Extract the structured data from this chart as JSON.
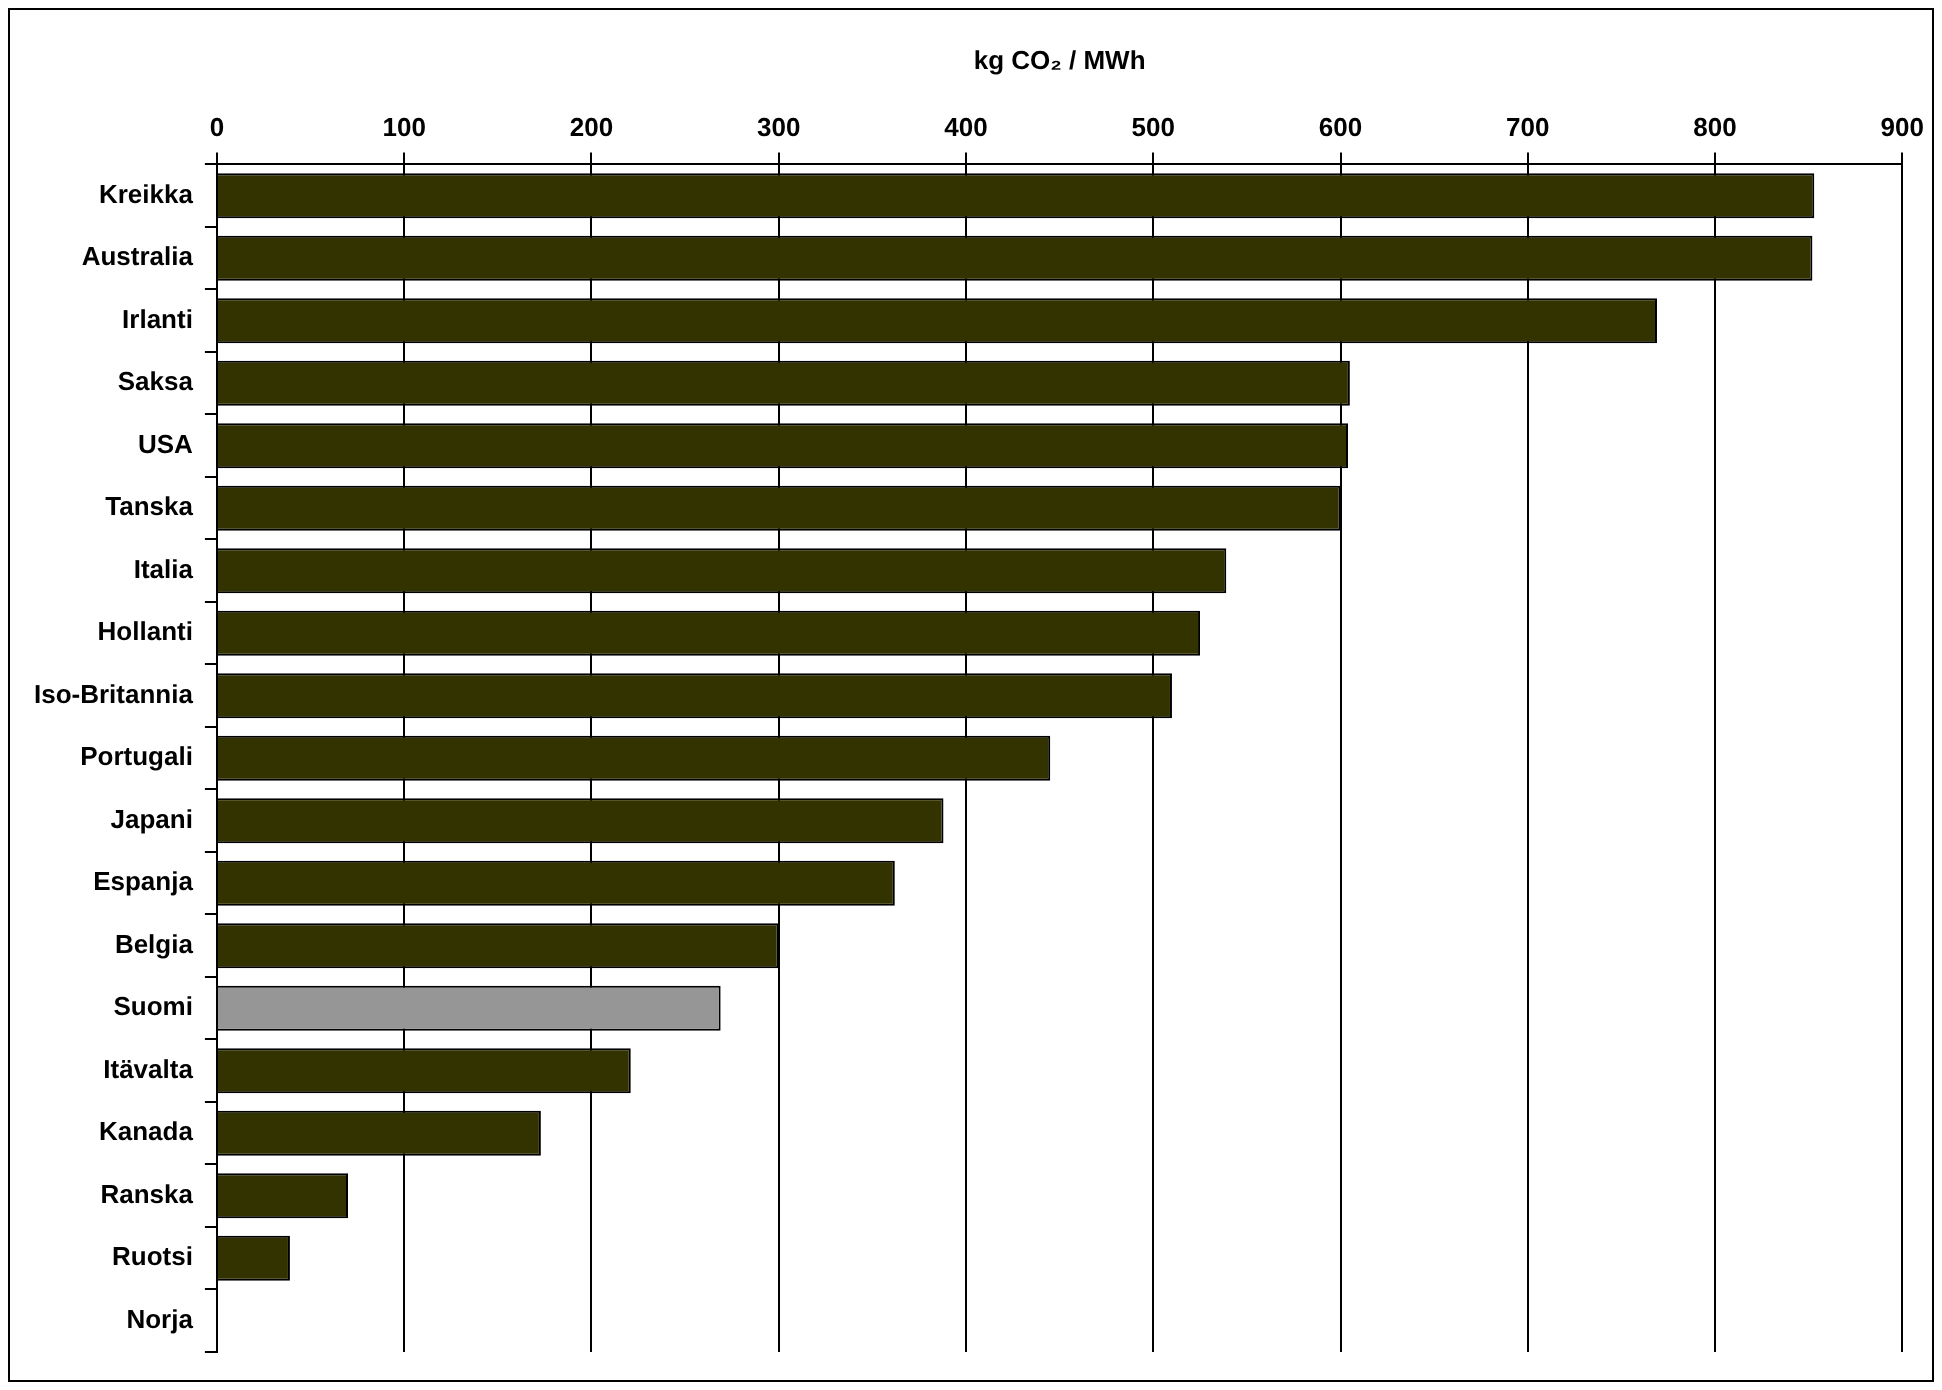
{
  "chart_data": {
    "type": "bar",
    "orientation": "horizontal",
    "xlabel": "kg CO₂ / MWh",
    "categories": [
      "Kreikka",
      "Australia",
      "Irlanti",
      "Saksa",
      "USA",
      "Tanska",
      "Italia",
      "Hollanti",
      "Iso-Britannia",
      "Portugali",
      "Japani",
      "Espanja",
      "Belgia",
      "Suomi",
      "Itävalta",
      "Kanada",
      "Ranska",
      "Ruotsi",
      "Norja"
    ],
    "values": [
      853,
      852,
      769,
      605,
      604,
      600,
      539,
      525,
      510,
      445,
      388,
      362,
      300,
      269,
      221,
      173,
      70,
      39,
      0
    ],
    "colors": [
      "#333300",
      "#333300",
      "#333300",
      "#333300",
      "#333300",
      "#333300",
      "#333300",
      "#333300",
      "#333300",
      "#333300",
      "#333300",
      "#333300",
      "#333300",
      "#969696",
      "#333300",
      "#333300",
      "#333300",
      "#333300",
      "#333300"
    ],
    "xlim": [
      0,
      900
    ],
    "xticks": [
      0,
      100,
      200,
      300,
      400,
      500,
      600,
      700,
      800,
      900
    ],
    "grid": "x",
    "legend": false
  }
}
